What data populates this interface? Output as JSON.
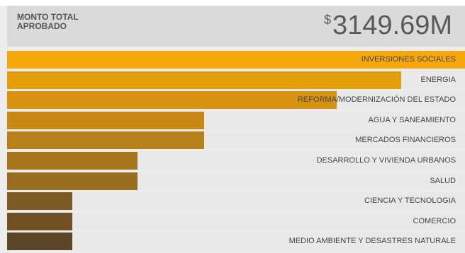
{
  "header": {
    "label": "MONTO TOTAL APROBADO",
    "currency_symbol": "$",
    "amount": "3149.69M"
  },
  "chart_data": {
    "type": "bar",
    "orientation": "horizontal",
    "categories": [
      "INVERSIONES SOCIALES",
      "ENERGIA",
      "REFORMA/MODERNIZACIÓN DEL ESTADO",
      "AGUA Y SANEAMIENTO",
      "MERCADOS FINANCIEROS",
      "DESARROLLO Y VIVIENDA URBANOS",
      "SALUD",
      "CIENCIA Y TECNOLOGIA",
      "COMERCIO",
      "MEDIO AMBIENTE Y DESASTRES NATURALE"
    ],
    "values": [
      1.0,
      0.86,
      0.72,
      0.43,
      0.43,
      0.285,
      0.285,
      0.143,
      0.143,
      0.143
    ],
    "colors": [
      "#f6a70a",
      "#e39e0c",
      "#d89410",
      "#c98814",
      "#b8801a",
      "#a7761c",
      "#9a6c20",
      "#7d5a24",
      "#6f5125",
      "#5a4626"
    ]
  }
}
